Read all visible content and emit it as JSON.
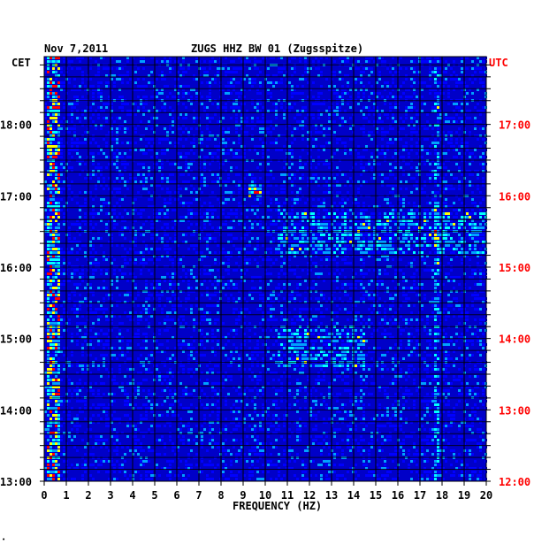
{
  "header": {
    "date": "Nov 7,2011",
    "station": "ZUGS HHZ BW 01 (Zugsspitze)",
    "left_zone": "CET",
    "right_zone": "UTC"
  },
  "chart_data": {
    "type": "heatmap",
    "title": "ZUGS HHZ BW 01 (Zugsspitze)",
    "date": "Nov 7,2011",
    "xlabel": "FREQUENCY (HZ)",
    "xlim": [
      0,
      20
    ],
    "x_ticks": [
      "0",
      "1",
      "2",
      "3",
      "4",
      "5",
      "6",
      "7",
      "8",
      "9",
      "10",
      "11",
      "12",
      "13",
      "14",
      "15",
      "16",
      "17",
      "18",
      "19",
      "20"
    ],
    "ylabel_left": "CET",
    "ylabel_right": "UTC",
    "y_ticks_left": [
      "13:00",
      "14:00",
      "15:00",
      "16:00",
      "17:00",
      "18:00"
    ],
    "y_ticks_right": [
      "12:00",
      "13:00",
      "14:00",
      "15:00",
      "16:00",
      "17:00"
    ],
    "y_range_hours_cet": [
      13.0,
      18.95
    ],
    "colors": {
      "background": "#0000c8",
      "low": "#0000ff",
      "mid": "#00a0ff",
      "cyan": "#00ffff",
      "yellow": "#ffff00",
      "red": "#ff0000",
      "right_axis": "#ff0000",
      "grid": "#000000"
    },
    "features": [
      {
        "label": "low-frequency band",
        "f_min": 0.1,
        "f_max": 0.7,
        "level": "high"
      },
      {
        "label": "tonal line",
        "f_min": 17.6,
        "f_max": 17.8,
        "level": "mid"
      },
      {
        "label": "burst",
        "f_min": 10.5,
        "f_max": 14.5,
        "t_min": 14.6,
        "t_max": 15.2,
        "level": "mid"
      },
      {
        "label": "burst",
        "f_min": 10.5,
        "f_max": 20.0,
        "t_min": 16.2,
        "t_max": 16.8,
        "level": "mid"
      },
      {
        "label": "burst",
        "f_min": 9.2,
        "f_max": 9.8,
        "t_min": 17.0,
        "t_max": 17.2,
        "level": "high"
      }
    ]
  }
}
